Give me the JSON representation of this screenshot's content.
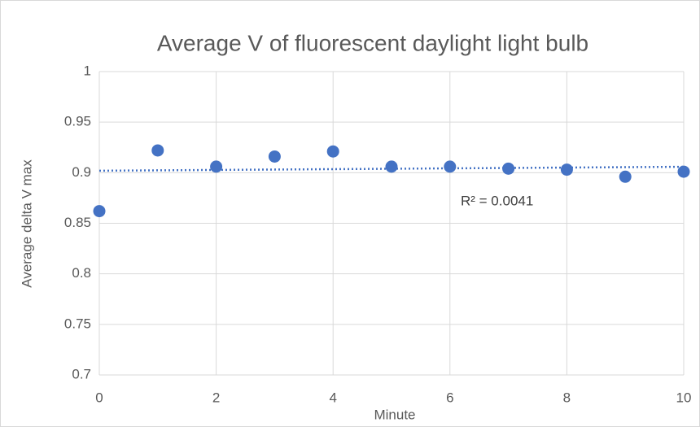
{
  "chart_data": {
    "type": "scatter",
    "title": "Average V of fluorescent daylight light bulb",
    "x_label": "Minute",
    "y_label": "Average delta V max",
    "series": [
      {
        "name": "Average delta V max",
        "color": "#4472c4",
        "x": [
          0,
          1,
          2,
          3,
          4,
          5,
          6,
          7,
          8,
          9,
          10
        ],
        "values": [
          0.862,
          0.922,
          0.906,
          0.916,
          0.921,
          0.906,
          0.906,
          0.904,
          0.903,
          0.896,
          0.901
        ]
      }
    ],
    "trendline": {
      "type": "linear",
      "color": "#4472c4",
      "annotation": "R² = 0.0041"
    },
    "xlim": [
      0,
      10
    ],
    "xticks": [
      0,
      2,
      4,
      6,
      8,
      10
    ],
    "ylim": [
      0.7,
      1
    ],
    "yticks": [
      0.7,
      0.75,
      0.8,
      0.85,
      0.9,
      0.95,
      1
    ],
    "grid": true
  }
}
